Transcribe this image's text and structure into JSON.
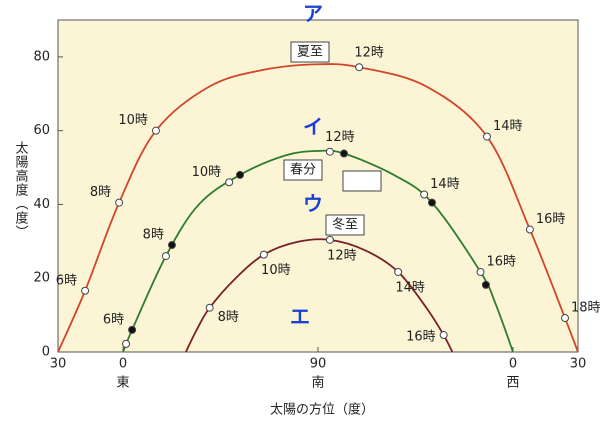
{
  "chart_data": {
    "type": "line",
    "xlabel": "太陽の方位（度）",
    "ylabel": "太陽高度（度）",
    "xlim": [
      -30,
      210
    ],
    "ylim": [
      0,
      90
    ],
    "xticks": [
      {
        "value": -30,
        "label": "30"
      },
      0,
      90,
      {
        "value": 180,
        "label": "0"
      },
      {
        "value": 210,
        "label": "30"
      }
    ],
    "yticks": [
      0,
      20,
      40,
      60,
      80
    ],
    "direction_labels": [
      {
        "value": 0,
        "label": "東"
      },
      {
        "value": 90,
        "label": "南"
      },
      {
        "value": 180,
        "label": "西"
      }
    ],
    "annotations": [
      "ア",
      "イ",
      "ウ",
      "エ"
    ],
    "series": [
      {
        "name": "夏至",
        "color": "#d2452b",
        "x": [
          -30,
          -17.5,
          -1.8,
          15.2,
          40,
          65,
          90,
          109,
          140,
          168,
          187.8,
          204,
          210
        ],
        "y": [
          0,
          16.6,
          40.5,
          60,
          72,
          76.5,
          78,
          77.2,
          72,
          58.4,
          33.2,
          9.2,
          0
        ],
        "markers": [
          {
            "x": -17.5,
            "y": 16.6,
            "label": "6時",
            "filled": false
          },
          {
            "x": -1.8,
            "y": 40.5,
            "label": "8時",
            "filled": false
          },
          {
            "x": 15.2,
            "y": 60,
            "label": "10時",
            "filled": false
          },
          {
            "x": 109,
            "y": 77.2,
            "label": "12時",
            "filled": false
          },
          {
            "x": 168,
            "y": 58.4,
            "label": "14時",
            "filled": false
          },
          {
            "x": 187.8,
            "y": 33.2,
            "label": "16時",
            "filled": false
          },
          {
            "x": 204,
            "y": 9.2,
            "label": "18時",
            "filled": false
          }
        ]
      },
      {
        "name": "春分",
        "color": "#2e7d2e",
        "x": [
          0,
          4.2,
          19.8,
          35,
          54,
          75,
          90,
          102,
          125,
          142.6,
          165,
          172,
          180
        ],
        "y": [
          0,
          6,
          26,
          40,
          48,
          53.3,
          54.5,
          53.8,
          48,
          40.5,
          21.7,
          13,
          0
        ],
        "markers": [
          {
            "x": 1.4,
            "y": 2.2,
            "filled": false
          },
          {
            "x": 4.2,
            "y": 6,
            "label": "6時",
            "filled": true
          },
          {
            "x": 19.8,
            "y": 26,
            "filled": false
          },
          {
            "x": 22.6,
            "y": 29,
            "label": "8時",
            "filled": true
          },
          {
            "x": 49,
            "y": 46,
            "label": "10時",
            "filled": false
          },
          {
            "x": 54,
            "y": 48,
            "filled": true
          },
          {
            "x": 95.5,
            "y": 54.3,
            "label": "12時",
            "filled": false
          },
          {
            "x": 102,
            "y": 53.8,
            "filled": true
          },
          {
            "x": 139,
            "y": 42.7,
            "label": "14時",
            "filled": false
          },
          {
            "x": 142.6,
            "y": 40.5,
            "filled": true
          },
          {
            "x": 165,
            "y": 21.7,
            "label": "16時",
            "filled": false
          },
          {
            "x": 167.5,
            "y": 18.2,
            "filled": true
          }
        ]
      },
      {
        "name": "冬至",
        "color": "#7a1f2a",
        "x": [
          29,
          34,
          40,
          52,
          65,
          80,
          95.5,
          112,
          127,
          140,
          148,
          152
        ],
        "y": [
          0,
          6,
          12,
          20,
          26.4,
          29.8,
          30.4,
          27.5,
          21.7,
          12,
          4.6,
          0
        ],
        "markers": [
          {
            "x": 40,
            "y": 12,
            "label": "8時",
            "filled": false
          },
          {
            "x": 65,
            "y": 26.4,
            "label": "10時",
            "filled": false
          },
          {
            "x": 95.5,
            "y": 30.4,
            "label": "12時",
            "filled": false
          },
          {
            "x": 127,
            "y": 21.7,
            "label": "14時",
            "filled": false
          },
          {
            "x": 148,
            "y": 4.6,
            "label": "16時",
            "filled": false
          }
        ]
      }
    ]
  }
}
